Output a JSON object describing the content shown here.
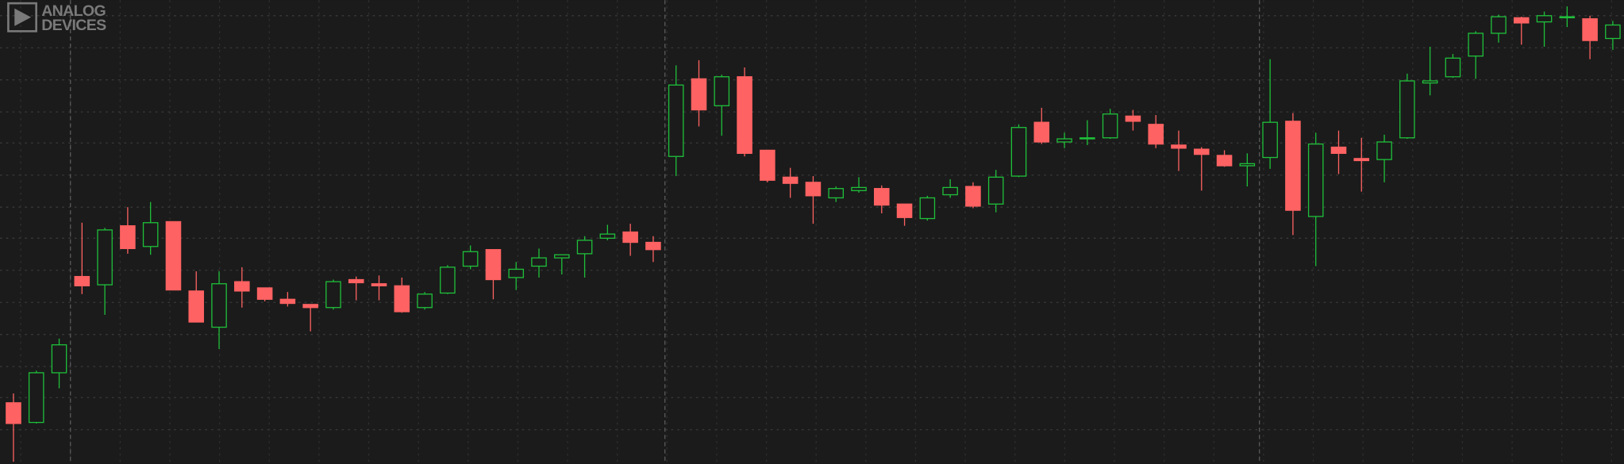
{
  "logo": {
    "line1": "ANALOG",
    "line2": "DEVICES"
  },
  "chart_data": {
    "type": "candlestick",
    "open": [
      59,
      40,
      88,
      181,
      173,
      230,
      210,
      234,
      167,
      132,
      176,
      170,
      159,
      154,
      151,
      178,
      174,
      172,
      151,
      165,
      191,
      207,
      180,
      191,
      199,
      203,
      218,
      224,
      214,
      297,
      372,
      346,
      374,
      303,
      277,
      272,
      257,
      264,
      266,
      251,
      237,
      260,
      268,
      251,
      278,
      330,
      311,
      314,
      315,
      336,
      328,
      308,
      304,
      298,
      288,
      296,
      331,
      239,
      306,
      295,
      294,
      315,
      368,
      374,
      394,
      416,
      431,
      427,
      431,
      430,
      411
    ],
    "high": [
      68,
      90,
      121,
      233,
      228,
      248,
      253,
      234,
      186,
      186,
      190,
      170,
      166,
      154,
      178,
      181,
      182,
      180,
      166,
      192,
      211,
      207,
      195,
      208,
      202,
      220,
      231,
      232,
      220,
      385,
      390,
      376,
      383,
      303,
      286,
      278,
      268,
      277,
      269,
      251,
      259,
      275,
      272,
      284,
      328,
      344,
      320,
      332,
      343,
      342,
      337,
      322,
      306,
      303,
      300,
      391,
      339,
      320,
      322,
      315,
      318,
      377,
      403,
      396,
      418,
      434,
      432,
      437,
      442,
      433,
      428
    ],
    "low": [
      2,
      39,
      73,
      164,
      144,
      203,
      202,
      168,
      137,
      111,
      151,
      157,
      152,
      128,
      149,
      158,
      158,
      146,
      149,
      164,
      188,
      159,
      168,
      180,
      183,
      180,
      216,
      201,
      195,
      278,
      326,
      317,
      297,
      272,
      257,
      232,
      253,
      262,
      242,
      230,
      235,
      257,
      247,
      243,
      277,
      309,
      305,
      308,
      314,
      322,
      305,
      283,
      264,
      287,
      268,
      285,
      221,
      191,
      280,
      263,
      272,
      314,
      356,
      373,
      372,
      407,
      405,
      403,
      422,
      391,
      400
    ],
    "close": [
      39,
      88,
      115,
      172,
      226,
      208,
      233,
      168,
      137,
      174,
      167,
      159,
      155,
      151,
      176,
      175,
      172,
      147,
      164,
      190,
      205,
      178,
      188,
      199,
      202,
      216,
      222,
      214,
      207,
      366,
      342,
      374,
      300,
      274,
      271,
      259,
      266,
      267,
      250,
      238,
      257,
      267,
      249,
      277,
      325,
      311,
      314,
      315,
      338,
      331,
      309,
      305,
      299,
      288,
      290,
      330,
      245,
      309,
      300,
      293,
      311,
      370,
      370,
      392,
      416,
      432,
      426,
      433,
      432,
      409,
      424
    ],
    "up_color": "#1fbf3a",
    "down_color": "#ff6262",
    "ylim": [
      0,
      448
    ],
    "yticks": [
      33,
      64,
      94,
      125,
      156,
      187,
      218,
      248,
      279,
      310,
      340,
      371,
      402,
      433
    ],
    "grid": true
  }
}
